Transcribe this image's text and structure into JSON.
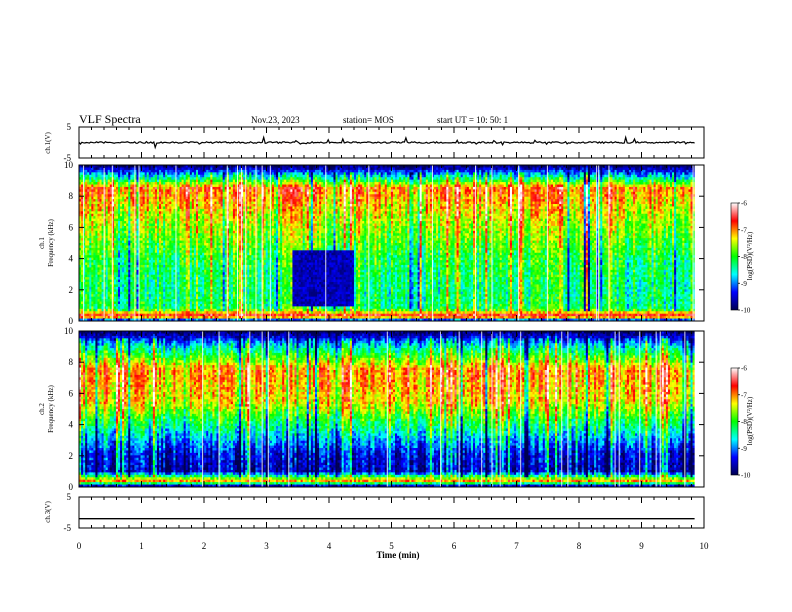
{
  "header": {
    "title": "VLF Spectra",
    "date": "Nov.23, 2023",
    "station": "station= MOS",
    "start": "start  UT =   10: 50: 1"
  },
  "colors": {
    "colormap": [
      "#000050",
      "#0000ff",
      "#00ffff",
      "#00ff00",
      "#ffff00",
      "#ff0000",
      "#ffffff"
    ]
  },
  "chart_data": [
    {
      "type": "line",
      "name": "ch1-waveform",
      "ylabel": "ch.1(V)",
      "yticks": [
        "5",
        "-5"
      ],
      "ylim": [
        -5,
        5
      ],
      "x": [
        0,
        9.85
      ],
      "y": [
        0,
        0
      ],
      "note": "near-constant trace with small spiky noise"
    },
    {
      "type": "heatmap",
      "name": "ch1-spectrogram",
      "ylabel": "ch.1\nFrequency (kHz)",
      "yticks": [
        "0",
        "2",
        "4",
        "6",
        "8",
        "10"
      ],
      "ylim": [
        0,
        10
      ],
      "xlim": [
        0,
        10
      ],
      "data_extent_x": [
        0,
        9.85
      ],
      "colorbar": {
        "label": "log(PSD)(V²/Hz)",
        "ticks": [
          "-6",
          "-7",
          "-8",
          "-9",
          "-10"
        ],
        "range": [
          -10,
          -6
        ]
      },
      "mean_levels_by_freq": [
        {
          "f": 0.0,
          "v": -10.0
        },
        {
          "f": 0.3,
          "v": -6.3
        },
        {
          "f": 0.8,
          "v": -8.2
        },
        {
          "f": 2.0,
          "v": -8.3
        },
        {
          "f": 4.0,
          "v": -8.1
        },
        {
          "f": 6.5,
          "v": -7.5
        },
        {
          "f": 8.5,
          "v": -6.9
        },
        {
          "f": 9.2,
          "v": -8.5
        },
        {
          "f": 10.0,
          "v": -10.0
        }
      ],
      "low_intensity_region": {
        "t": [
          3.4,
          4.4
        ],
        "f": [
          1.0,
          4.5
        ],
        "v": -9.6
      }
    },
    {
      "type": "heatmap",
      "name": "ch2-spectrogram",
      "ylabel": "ch.2\nFrequency (kHz)",
      "yticks": [
        "0",
        "2",
        "4",
        "6",
        "8",
        "10"
      ],
      "ylim": [
        0,
        10
      ],
      "xlim": [
        0,
        10
      ],
      "data_extent_x": [
        0,
        9.85
      ],
      "colorbar": {
        "label": "log(PSD)(V²/Hz)",
        "ticks": [
          "-6",
          "-7",
          "-8",
          "-9",
          "-10"
        ],
        "range": [
          -10,
          -6
        ]
      },
      "mean_levels_by_freq": [
        {
          "f": 0.0,
          "v": -10.0
        },
        {
          "f": 0.4,
          "v": -7.0
        },
        {
          "f": 1.0,
          "v": -9.6
        },
        {
          "f": 2.2,
          "v": -9.4
        },
        {
          "f": 3.5,
          "v": -8.6
        },
        {
          "f": 5.5,
          "v": -7.3
        },
        {
          "f": 7.5,
          "v": -7.0
        },
        {
          "f": 9.0,
          "v": -8.6
        },
        {
          "f": 10.0,
          "v": -10.0
        }
      ]
    },
    {
      "type": "line",
      "name": "ch3-waveform",
      "ylabel": "ch.3(V)",
      "yticks": [
        "5",
        "-5"
      ],
      "ylim": [
        -5,
        5
      ],
      "xlabel": "Time  (min)",
      "xticks": [
        "0",
        "1",
        "2",
        "3",
        "4",
        "5",
        "6",
        "7",
        "8",
        "9",
        "10"
      ],
      "xlim": [
        0,
        10
      ],
      "x": [
        0,
        9.85
      ],
      "y": [
        -2,
        -2
      ]
    }
  ]
}
